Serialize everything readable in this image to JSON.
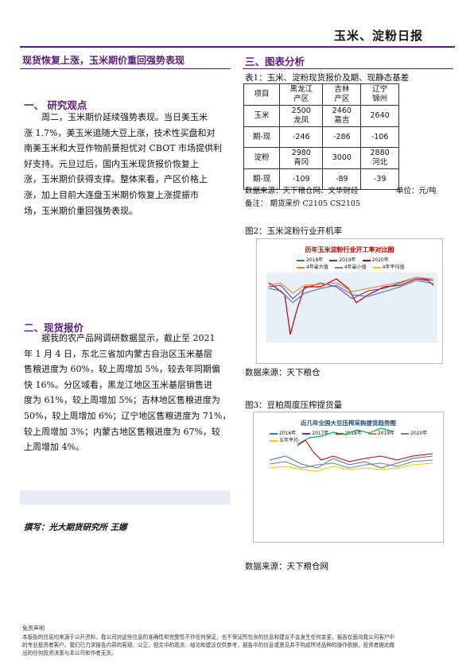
{
  "header": {
    "title": "玉米、淀粉日报"
  },
  "left": {
    "headline": "现货恢复上涨，玉米期价重回强势表现",
    "section1": {
      "heading": "一、 研究观点",
      "lines": [
        "周二，玉米期价延续强势表现。当日美玉米",
        "涨 1.7%，美玉米追随大豆上涨，技术性买盘和对",
        "南美玉米和大豆作物前景担忧对 CBOT 市场提供利",
        "好支持。元旦过后，国内玉米现货报价恢复上",
        "涨，玉米期价获得支撑。整体来看，产区价格上",
        "涨，加上目前大连盘玉米期价恢复上涨提振市",
        "场，玉米期价重回强势表现。"
      ]
    },
    "section2": {
      "heading": "二、现货报价",
      "lines": [
        "据我的农产品网调研数据显示，截止至 2021",
        "年 1 月 4 日，东北三省加内蒙古自治区玉米基层",
        "售粮进度为 60%，较上周增加 5%，较去年同期偏",
        "快 16%。分区域看，黑龙江地区玉米基层销售进",
        "度为 61%，较上周增加 5%；吉林地区售粮进度为",
        "50%，较上周增加 6%；辽宁地区售粮进度为 71%，",
        "较上周增加 3%；内蒙古地区售粮进度为 67%，较",
        "上周增加 4%。"
      ]
    },
    "author": "撰写：光大期货研究所 王娜"
  },
  "right": {
    "heading": "三、图表分析",
    "table": {
      "caption": "表1：玉米、淀粉现货报价及期、现静态基差",
      "header": [
        [
          "项目"
        ],
        [
          "黑龙江",
          "产区"
        ],
        [
          "吉林",
          "产区"
        ],
        [
          "辽宁",
          "锦州"
        ]
      ],
      "rows": [
        [
          [
            "玉米"
          ],
          [
            "2500",
            "龙凤"
          ],
          [
            "2460",
            "嘉吉"
          ],
          [
            "2640"
          ]
        ],
        [
          [
            "期-现"
          ],
          [
            "-246"
          ],
          [
            "-286"
          ],
          [
            "-106"
          ]
        ],
        [
          [
            "淀粉"
          ],
          [
            "2980",
            "青冈"
          ],
          [
            "3000"
          ],
          [
            "2880",
            "河北"
          ]
        ],
        [
          [
            "期-现"
          ],
          [
            "-109"
          ],
          [
            "-89"
          ],
          [
            "-39"
          ]
        ]
      ]
    },
    "source": "数据来源：天下粮仓网、文华财经",
    "unit": "单位：元/吨",
    "note": "备注： 期货采价 C2105 CS2105",
    "figure2": {
      "caption": "图2：玉米淀粉行业开机率",
      "title": "历年玉米淀粉行业开工率对比图",
      "legend": [
        "2018年",
        "2019年",
        "2020年",
        "4年最大值",
        "4年最小值",
        "4年平均值"
      ],
      "source": "数据来源：天下粮仓"
    },
    "figure3": {
      "caption": "图3：豆粕周度压榨提货量",
      "title": "近几年全国大豆压榨采购提货趋势图",
      "legend": [
        "2016年",
        "2017年",
        "2018年",
        "2019年",
        "2020年",
        "五年平均"
      ],
      "source": "数据来源：天下粮仓网"
    }
  },
  "footer": {
    "heading": "免责声明",
    "lines": [
      "本报告的信息均来源于公开资料，我公司对这些信息的准确性和完整性不作任何保证，也不保证所包含的信息和建议不会发生任何变更，报告仅面向我公司客户中",
      "的专业投资者客户。我们已力求报告内容的客观、公正，但文中的观点、结论和建议仅供参考，报告中的信息或意见并不构成所述品种的操作依据，投资者据此做",
      "出的任何投资决策与本公司和作者无关。"
    ]
  }
}
